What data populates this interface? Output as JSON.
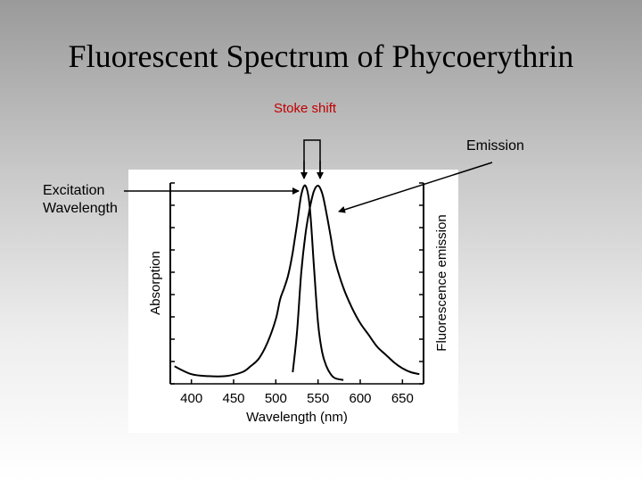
{
  "slide": {
    "title": "Fluorescent Spectrum of Phycoerythrin",
    "stoke_shift_label": "Stoke shift",
    "emission_label": "Emission",
    "excitation_label_line1": "Excitation",
    "excitation_label_line2": "Wavelength",
    "colors": {
      "stoke_shift_text": "#c00000",
      "plot_background": "#ffffff",
      "curve": "#000000"
    }
  },
  "chart_data": {
    "type": "line",
    "title": "",
    "xlabel": "Wavelength (nm)",
    "ylabel_left": "Absorption",
    "ylabel_right": "Fluorescence emission",
    "xlim": [
      375,
      675
    ],
    "ylim": [
      0,
      1
    ],
    "x_ticks": [
      400,
      450,
      500,
      550,
      600,
      650
    ],
    "x_tick_labels": [
      "400",
      "450",
      "500",
      "550",
      "600",
      "650"
    ],
    "grid": false,
    "series": [
      {
        "x": [
          380,
          400,
          420,
          440,
          460,
          470,
          480,
          490,
          500,
          505,
          510,
          515,
          520,
          525,
          530,
          535,
          540,
          545,
          550,
          555,
          560,
          565,
          570,
          580
        ],
        "y": [
          0.08,
          0.04,
          0.03,
          0.03,
          0.05,
          0.08,
          0.12,
          0.2,
          0.32,
          0.42,
          0.48,
          0.55,
          0.66,
          0.8,
          0.95,
          1.0,
          0.9,
          0.6,
          0.3,
          0.15,
          0.08,
          0.04,
          0.02,
          0.01
        ]
      },
      {
        "x": [
          520,
          525,
          530,
          535,
          540,
          545,
          550,
          555,
          560,
          565,
          570,
          580,
          590,
          600,
          610,
          620,
          630,
          640,
          650,
          660,
          670
        ],
        "y": [
          0.05,
          0.25,
          0.55,
          0.75,
          0.88,
          0.97,
          1.0,
          0.96,
          0.86,
          0.74,
          0.62,
          0.48,
          0.38,
          0.3,
          0.24,
          0.18,
          0.14,
          0.1,
          0.07,
          0.05,
          0.04
        ]
      }
    ]
  }
}
